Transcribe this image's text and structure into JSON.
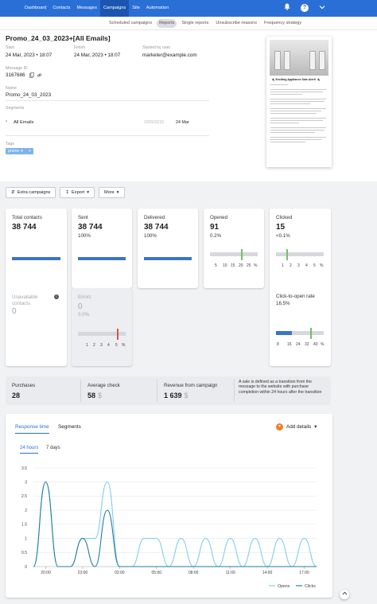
{
  "topnav": {
    "items": [
      "Dashboard",
      "Contacts",
      "Messages",
      "Campaigns",
      "Site",
      "Automation"
    ],
    "active": "Campaigns",
    "icons": [
      "bell-icon",
      "help-icon",
      "chevron-down-icon"
    ]
  },
  "subnav": {
    "tabs": [
      "Scheduled campaigns",
      "Reports",
      "Single reports",
      "Unsubscribe reasons",
      "Frequency strategy"
    ],
    "active": "Reports"
  },
  "campaign": {
    "title": "Promo_24_03_2023+[All Emails]",
    "start_label": "Start",
    "start_value": "24 Mar, 2023 • 18:07",
    "finish_label": "Finish",
    "finish_value": "24 Mar, 2023 • 18:07",
    "started_by_label": "Started by user",
    "started_by_value": "marketer@example.com",
    "message_id_label": "Message ID",
    "message_id_value": "3167686",
    "name_label": "Name",
    "name_value": "Promo_24_03_2023",
    "segments_label": "Segments",
    "segment": {
      "name": "All Emails",
      "number": "200503233",
      "date": "24 Mar"
    },
    "tags_label": "Tags",
    "tags": [
      "promo ✕",
      "+"
    ]
  },
  "preview": {
    "heading": "🔌 Exciting Appliance Sale Alert! 🔌",
    "text": "Highlights of our Sale: Smart Kitchen Combos, Energy-Efficient Refrigerators, Multi-Function Washing Machines, Home Entertainment Systems"
  },
  "actions": {
    "extra": "Extra campaigns",
    "export": "Export",
    "more": "More"
  },
  "stats": {
    "total_contacts": {
      "label": "Total contacts",
      "value": "38 744"
    },
    "sent": {
      "label": "Sent",
      "value": "38 744",
      "percent": "100%"
    },
    "delivered": {
      "label": "Delivered",
      "value": "38 744",
      "percent": "100%"
    },
    "opened": {
      "label": "Opened",
      "value": "91",
      "percent": "0.2%",
      "scale": [
        "5",
        "10",
        "15",
        "20",
        "25",
        "%"
      ],
      "marker": 0.2
    },
    "clicked": {
      "label": "Clicked",
      "value": "15",
      "percent": "<0.1%",
      "scale": [
        "1",
        "2",
        "3",
        "4",
        "5",
        "%"
      ],
      "marker": 0.04
    },
    "unavailable": {
      "label": "Unavailable contacts",
      "value": "0"
    },
    "errors": {
      "label": "Errors",
      "value": "0",
      "percent": "0.0%",
      "scale": [
        "1",
        "2",
        "3",
        "4",
        "5",
        "%"
      ],
      "marker": 0.0
    },
    "click_to_open": {
      "label": "Click-to-open rate",
      "percent": "16.5%",
      "scale": [
        "8",
        "16",
        "24",
        "32",
        "40",
        "%"
      ],
      "marker": 16.5
    }
  },
  "revenue": {
    "purchases_label": "Purchases",
    "purchases_value": "28",
    "avg_check_label": "Average check",
    "avg_check_value": "58",
    "revenue_label": "Revenue from campaign",
    "revenue_value": "1 639",
    "currency": "$",
    "note": "A sale is defined as a transition from the message to the website with purchase completion within 24 hours after the transition"
  },
  "chart_section": {
    "tabs": [
      "Response time",
      "Segments"
    ],
    "active_tab": "Response time",
    "range_tabs": [
      "24 hours",
      "7 days"
    ],
    "active_range": "24 hours",
    "add_details": "Add details"
  },
  "chart_data": {
    "type": "line",
    "x": [
      "19:00",
      "20:00",
      "21:00",
      "22:00",
      "23:00",
      "00:00",
      "01:00",
      "02:00",
      "03:00",
      "04:00",
      "05:00",
      "06:00",
      "07:00",
      "08:00",
      "09:00",
      "10:00",
      "11:00",
      "12:00",
      "13:00",
      "14:00",
      "15:00",
      "16:00",
      "17:00",
      "18:00"
    ],
    "xtick_labels": [
      "20:00",
      "23:00",
      "02:00",
      "05:00",
      "08:00",
      "11:00",
      "14:00",
      "17:00"
    ],
    "ylim": [
      0,
      3.5
    ],
    "yticks": [
      "0",
      "0.5",
      "1",
      "1.5",
      "2",
      "2.5",
      "3",
      "3.5"
    ],
    "series": [
      {
        "name": "Opens",
        "color": "#7fd0e6",
        "values": [
          0,
          3,
          0,
          0,
          1,
          1,
          3,
          0,
          0,
          1,
          1,
          0,
          1,
          0,
          1,
          0,
          1,
          0,
          1,
          0,
          1,
          0,
          1,
          0
        ]
      },
      {
        "name": "Clicks",
        "color": "#1f7fa6",
        "values": [
          0,
          3,
          0,
          0,
          1,
          0,
          2,
          0,
          0,
          0,
          0,
          0,
          0,
          0,
          0,
          0,
          0,
          0,
          0,
          0,
          0,
          0,
          0,
          0
        ]
      }
    ],
    "legend_position": "bottom-right",
    "grid": true
  }
}
